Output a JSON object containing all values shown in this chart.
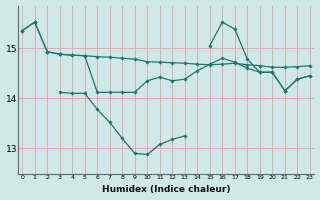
{
  "xlabel": "Humidex (Indice chaleur)",
  "background_color": "#cfe8e8",
  "grid_color": "#e8a0a0",
  "line_color": "#1a7a6e",
  "x_ticks": [
    0,
    1,
    2,
    3,
    4,
    5,
    6,
    7,
    8,
    9,
    10,
    11,
    12,
    13,
    14,
    15,
    16,
    17,
    18,
    19,
    20,
    21,
    22,
    23
  ],
  "y_ticks": [
    13,
    14,
    15
  ],
  "ylim": [
    12.5,
    15.85
  ],
  "xlim": [
    -0.3,
    23.3
  ],
  "series": [
    {
      "x": [
        0,
        1,
        2,
        3,
        4,
        5,
        6,
        7,
        8,
        9,
        10,
        11,
        12,
        13,
        14,
        15,
        16,
        17,
        18,
        19,
        20,
        21,
        22,
        23
      ],
      "y": [
        15.35,
        15.52,
        14.93,
        14.88,
        14.86,
        14.85,
        14.83,
        14.82,
        14.8,
        14.78,
        14.73,
        14.72,
        14.71,
        14.7,
        14.68,
        14.67,
        14.68,
        14.7,
        14.67,
        14.65,
        14.62,
        14.62,
        14.63,
        14.65
      ]
    },
    {
      "x": [
        0,
        1,
        2,
        3,
        4,
        5,
        6,
        7,
        8,
        9,
        10,
        11,
        12,
        13,
        14,
        15,
        16,
        17,
        18,
        19,
        20,
        21,
        22,
        23
      ],
      "y": [
        15.35,
        15.52,
        14.93,
        14.88,
        14.86,
        14.85,
        14.12,
        14.12,
        14.12,
        14.12,
        14.35,
        14.42,
        14.35,
        14.38,
        14.55,
        14.68,
        14.8,
        14.72,
        14.6,
        14.52,
        14.52,
        14.15,
        14.38,
        14.45
      ]
    },
    {
      "x": [
        15,
        16,
        17,
        18,
        19,
        20,
        21,
        22,
        23
      ],
      "y": [
        15.05,
        15.52,
        15.38,
        14.78,
        14.52,
        14.52,
        14.15,
        14.38,
        14.45
      ]
    },
    {
      "x": [
        3,
        4,
        5,
        6,
        7,
        8,
        9,
        10,
        11,
        12,
        13
      ],
      "y": [
        14.12,
        14.1,
        14.1,
        13.78,
        13.52,
        13.2,
        12.9,
        12.88,
        13.08,
        13.18,
        13.25
      ]
    }
  ]
}
